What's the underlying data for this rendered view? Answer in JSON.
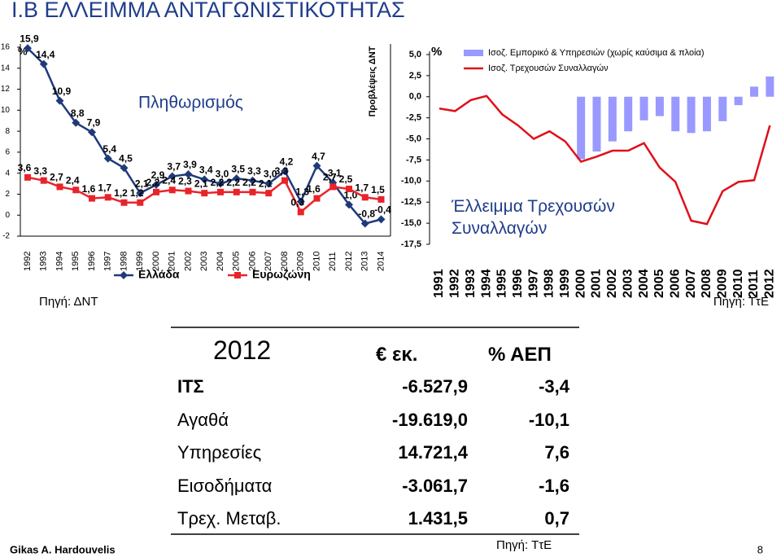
{
  "title": "I.B ΕΛΛΕΙΜΜΑ ΑΝΤΑΓΩΝΙΣΤΙΚΟΤΗΤΑΣ",
  "chart_data": [
    {
      "type": "line",
      "title": "Πληθωρισμός",
      "annotation": "Προβλέψεις ΔΝΤ",
      "ylabel": "%",
      "source": "Πηγή: ΔΝΤ",
      "categories": [
        "1992",
        "1993",
        "1994",
        "1995",
        "1996",
        "1997",
        "1998",
        "1999",
        "2000",
        "2001",
        "2002",
        "2003",
        "2004",
        "2005",
        "2006",
        "2007",
        "2008",
        "2009",
        "2010",
        "2011",
        "2012",
        "2013",
        "2014"
      ],
      "ylim": [
        -2,
        16
      ],
      "yticks": [
        -2,
        0,
        2,
        4,
        6,
        8,
        10,
        12,
        14,
        16
      ],
      "legend": "bottom",
      "series": [
        {
          "name": "Ελλάδα",
          "color": "#1f3a7a",
          "marker": "diamond",
          "values": [
            15.9,
            14.4,
            10.9,
            8.8,
            7.9,
            5.4,
            4.5,
            2.1,
            2.9,
            3.7,
            3.9,
            3.4,
            3.0,
            3.5,
            3.3,
            3.0,
            4.2,
            1.3,
            4.7,
            3.1,
            1.0,
            -0.8,
            -0.4
          ],
          "value_labels": [
            "15,9",
            "14,4",
            "10,9",
            "8,8",
            "7,9",
            "5,4",
            "4,5",
            "2,1",
            "2,9",
            "3,7",
            "3,9",
            "3,4",
            "3,0",
            "3,5",
            "3,3",
            "3,0",
            "4,2",
            "1,3",
            "4,7",
            "3,1",
            "1,0",
            "-0,8",
            "-0,4"
          ]
        },
        {
          "name": "Ευρωζώνη",
          "color": "#e8242a",
          "marker": "square",
          "values": [
            3.6,
            3.3,
            2.7,
            2.4,
            1.6,
            1.7,
            1.2,
            1.2,
            2.2,
            2.4,
            2.3,
            2.1,
            2.2,
            2.2,
            2.2,
            2.1,
            3.3,
            0.3,
            1.6,
            2.7,
            2.5,
            1.7,
            1.5
          ],
          "value_labels": [
            "3,6",
            "3,3",
            "2,7",
            "2,4",
            "1,6",
            "1,7",
            "1,2",
            "1,2",
            "2,2",
            "2,4",
            "2,3",
            "2,1",
            "2,2",
            "2,2",
            "2,2",
            "2,1",
            "3,3",
            "0,3",
            "1,6",
            "2,7",
            "2,5",
            "1,7",
            "1,5"
          ]
        }
      ]
    },
    {
      "type": "bar-line",
      "annotation": "Έλλειμμα Τρεχουσών Συναλλαγών",
      "ylabel": "%",
      "source": "Πηγή: ΤτΕ",
      "categories": [
        "1991",
        "1992",
        "1993",
        "1994",
        "1995",
        "1996",
        "1997",
        "1998",
        "1999",
        "2000",
        "2001",
        "2002",
        "2003",
        "2004",
        "2005",
        "2006",
        "2007",
        "2008",
        "2009",
        "2010",
        "2011",
        "2012"
      ],
      "ylim": [
        -17.5,
        5
      ],
      "legend": "top-right",
      "yticks": [
        {
          "value": -17.5,
          "label": "-17,5"
        },
        {
          "value": -15,
          "label": "-15,0"
        },
        {
          "value": -12.5,
          "label": "-12,5"
        },
        {
          "value": -10,
          "label": "-10,0"
        },
        {
          "value": -7.5,
          "label": "-7,5"
        },
        {
          "value": -5,
          "label": "-5,0"
        },
        {
          "value": -2.5,
          "label": "-2,5"
        },
        {
          "value": 0,
          "label": "0,0"
        },
        {
          "value": 2.5,
          "label": "2,5"
        },
        {
          "value": 5,
          "label": "5,0"
        }
      ],
      "series": [
        {
          "name": "Ισοζ. Εμπορικό & Υπηρεσιών (χωρίς καύσιμα & πλοία)",
          "type": "bar",
          "color": "#9999ff",
          "values": [
            null,
            null,
            null,
            null,
            null,
            null,
            null,
            null,
            null,
            -7.4,
            -6.5,
            -5.3,
            -4.1,
            -2.8,
            -2.3,
            -4.1,
            -4.3,
            -4.1,
            -2.9,
            -1.0,
            1.2,
            2.4
          ]
        },
        {
          "name": "Ισοζ. Τρεχουσών Συναλλαγών",
          "type": "line",
          "color": "#e0101a",
          "values": [
            -1.4,
            -1.7,
            -0.4,
            0.1,
            -2.1,
            -3.4,
            -5.0,
            -4.1,
            -5.3,
            -7.7,
            -7.1,
            -6.4,
            -6.4,
            -5.5,
            -8.4,
            -10.1,
            -14.7,
            -15.1,
            -11.2,
            -10.1,
            -9.9,
            -3.4
          ]
        }
      ]
    }
  ],
  "table": {
    "header": [
      "2012",
      "€ εκ.",
      "% ΑΕΠ"
    ],
    "rows": [
      [
        "ΙΤΣ",
        "-6.527,9",
        "-3,4"
      ],
      [
        "Αγαθά",
        "-19.619,0",
        "-10,1"
      ],
      [
        "Υπηρεσίες",
        "14.721,4",
        "7,6"
      ],
      [
        "Εισοδήματα",
        "-3.061,7",
        "-1,6"
      ],
      [
        "Τρεχ. Μεταβ.",
        "1.431,5",
        "0,7"
      ]
    ]
  },
  "footer": {
    "author": "Gikas A. Hardouvelis",
    "source": "Πηγή: ΤτΕ",
    "page": "8"
  }
}
